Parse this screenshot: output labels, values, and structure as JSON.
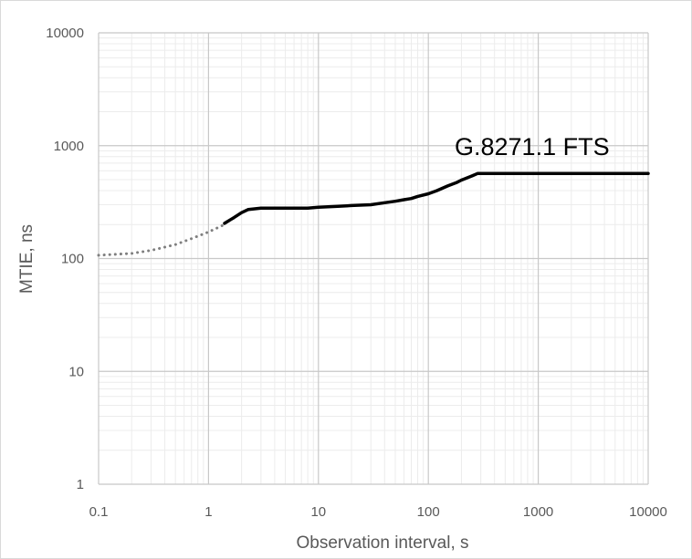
{
  "chart_data": {
    "type": "line",
    "title": "",
    "xlabel": "Observation interval, s",
    "ylabel": "MTIE, ns",
    "xscale": "log",
    "yscale": "log",
    "xlim": [
      0.1,
      10000
    ],
    "ylim": [
      1,
      10000
    ],
    "x_ticks": [
      0.1,
      1,
      10,
      100,
      1000,
      10000
    ],
    "x_tick_labels": [
      "0.1",
      "1",
      "10",
      "100",
      "1000",
      "10000"
    ],
    "y_ticks": [
      1,
      10,
      100,
      1000,
      10000
    ],
    "y_tick_labels": [
      "1",
      "10",
      "100",
      "1000",
      "10000"
    ],
    "grid": "major and minor",
    "legend": "none",
    "annotation": "G.8271.1 FTS",
    "series": [
      {
        "style": "dotted",
        "color": "#7f7f7f",
        "x": [
          0.1,
          0.2,
          0.3,
          0.5,
          0.7,
          1.0,
          1.4
        ],
        "y": [
          107,
          111,
          118,
          133,
          150,
          172,
          200
        ]
      },
      {
        "style": "solid",
        "color": "#000000",
        "x": [
          1.4,
          1.7,
          2.0,
          2.3,
          3,
          5,
          8,
          10,
          15,
          20,
          30,
          40,
          50,
          60,
          70,
          80,
          100,
          120,
          150,
          180,
          200,
          250,
          280,
          500,
          1000,
          5000,
          10000
        ],
        "y": [
          205,
          230,
          255,
          272,
          280,
          280,
          280,
          285,
          290,
          295,
          300,
          312,
          322,
          332,
          340,
          355,
          375,
          400,
          440,
          470,
          495,
          540,
          566,
          566,
          566,
          566,
          566
        ]
      }
    ]
  }
}
